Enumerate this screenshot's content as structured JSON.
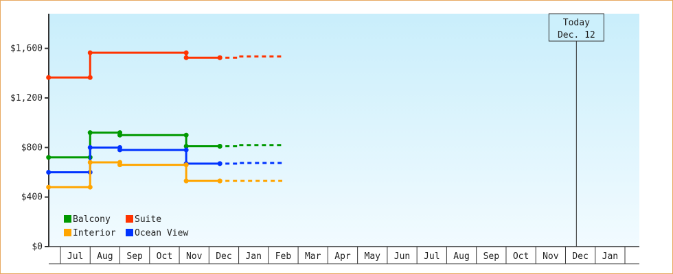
{
  "chart_data": {
    "type": "line",
    "step": true,
    "title": "",
    "xlabel": "",
    "ylabel": "",
    "ylim": [
      0,
      1880
    ],
    "yticks": [
      0,
      400,
      800,
      1200,
      1600
    ],
    "ytick_labels": [
      "$0",
      "$400",
      "$800",
      "$1,200",
      "$1,600"
    ],
    "x_months": [
      "Jun",
      "Jul",
      "Aug",
      "Sep",
      "Oct",
      "Nov",
      "Dec",
      "Jan",
      "Feb",
      "Mar",
      "Apr",
      "May",
      "Jun",
      "Jul",
      "Aug",
      "Sep",
      "Oct",
      "Nov",
      "Dec",
      "Jan",
      "Feb"
    ],
    "xtick_labels": [
      "Jul",
      "Aug",
      "Sep",
      "Oct",
      "Nov",
      "Dec",
      "Jan",
      "Feb",
      "Mar",
      "Apr",
      "May",
      "Jun",
      "Jul",
      "Aug",
      "Sep",
      "Oct",
      "Nov",
      "Dec",
      "Jan"
    ],
    "grid": false,
    "background": [
      "#c9eefb",
      "#f2fbff"
    ],
    "today": {
      "label": "Today",
      "date_label": "Dec. 12",
      "x": "Dec 12"
    },
    "legend": {
      "placement": "bottom-left",
      "entries": [
        {
          "name": "Balcony",
          "color": "#009900"
        },
        {
          "name": "Suite",
          "color": "#ff3300"
        },
        {
          "name": "Interior",
          "color": "#ffa500"
        },
        {
          "name": "Ocean View",
          "color": "#0033ff"
        }
      ]
    },
    "series": [
      {
        "name": "Suite",
        "color": "#ff3300",
        "points": [
          [
            "Jun 19",
            1365
          ],
          [
            "Aug 1",
            1565
          ],
          [
            "Nov 8",
            1525
          ],
          [
            "Dec 12",
            1525
          ]
        ],
        "forecast": [
          [
            "Dec 12",
            1525
          ],
          [
            "Jan 1",
            1535
          ],
          [
            "Feb 15",
            1535
          ]
        ]
      },
      {
        "name": "Balcony",
        "color": "#009900",
        "points": [
          [
            "Jun 19",
            720
          ],
          [
            "Aug 1",
            920
          ],
          [
            "Sep 1",
            900
          ],
          [
            "Nov 8",
            810
          ],
          [
            "Dec 12",
            810
          ]
        ],
        "forecast": [
          [
            "Dec 12",
            810
          ],
          [
            "Jan 1",
            820
          ],
          [
            "Feb 15",
            820
          ]
        ]
      },
      {
        "name": "Ocean View",
        "color": "#0033ff",
        "points": [
          [
            "Jun 19",
            600
          ],
          [
            "Aug 1",
            800
          ],
          [
            "Sep 1",
            780
          ],
          [
            "Nov 8",
            670
          ],
          [
            "Dec 12",
            670
          ]
        ],
        "forecast": [
          [
            "Dec 12",
            670
          ],
          [
            "Jan 1",
            675
          ],
          [
            "Feb 15",
            675
          ]
        ]
      },
      {
        "name": "Interior",
        "color": "#ffa500",
        "points": [
          [
            "Jun 19",
            480
          ],
          [
            "Aug 1",
            680
          ],
          [
            "Sep 1",
            660
          ],
          [
            "Nov 8",
            530
          ],
          [
            "Dec 12",
            530
          ]
        ],
        "forecast": [
          [
            "Dec 12",
            530
          ],
          [
            "Feb 15",
            530
          ]
        ]
      }
    ]
  }
}
